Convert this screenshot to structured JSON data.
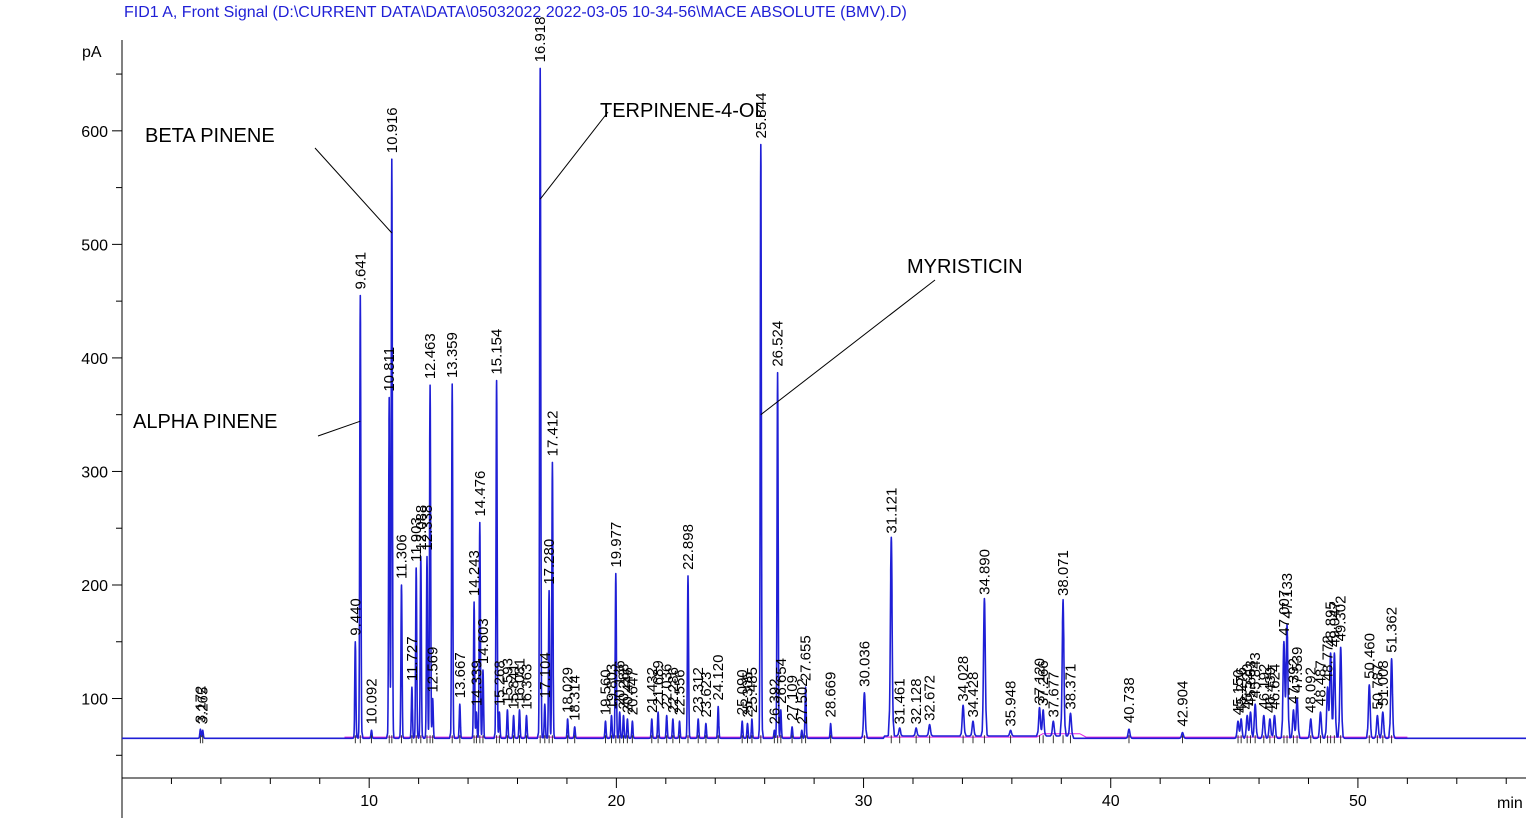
{
  "header": {
    "title": "FID1 A, Front Signal (D:\\CURRENT DATA\\DATA\\05032022 2022-03-05 10-34-56\\MACE ABSOLUTE (BMV).D)"
  },
  "colors": {
    "signal": "#1f1fd6",
    "baseline": "#e020e0",
    "axis": "#000000",
    "title": "#1f1fd6"
  },
  "chart_data": {
    "type": "line",
    "title": "FID1 A, Front Signal (D:\\CURRENT DATA\\DATA\\05032022 2022-03-05 10-34-56\\MACE ABSOLUTE (BMV).D)",
    "xlabel": "min",
    "ylabel": "pA",
    "xlim": [
      0,
      56.8
    ],
    "ylim": [
      30,
      680
    ],
    "x_ticks": [
      10,
      20,
      30,
      40,
      50
    ],
    "y_ticks": [
      100,
      200,
      300,
      400,
      500,
      600
    ],
    "baseline": 65,
    "grid": false,
    "peaks": [
      {
        "rt": 3.172,
        "h": 73,
        "label": "3.172"
      },
      {
        "rt": 3.265,
        "h": 72,
        "label": "3.265"
      },
      {
        "rt": 9.44,
        "h": 150,
        "label": "9.440"
      },
      {
        "rt": 9.641,
        "h": 455,
        "label": "9.641"
      },
      {
        "rt": 10.092,
        "h": 72,
        "label": "10.092"
      },
      {
        "rt": 10.811,
        "h": 365,
        "label": "10.811"
      },
      {
        "rt": 10.916,
        "h": 575,
        "label": "10.916"
      },
      {
        "rt": 11.306,
        "h": 200,
        "label": "11.306"
      },
      {
        "rt": 11.727,
        "h": 110,
        "label": "11.727"
      },
      {
        "rt": 11.903,
        "h": 215,
        "label": "11.903"
      },
      {
        "rt": 12.088,
        "h": 225,
        "label": "12.088"
      },
      {
        "rt": 12.338,
        "h": 225,
        "label": "12.338"
      },
      {
        "rt": 12.463,
        "h": 376,
        "label": "12.463"
      },
      {
        "rt": 12.569,
        "h": 100,
        "label": "12.569"
      },
      {
        "rt": 13.359,
        "h": 377,
        "label": "13.359"
      },
      {
        "rt": 13.667,
        "h": 95,
        "label": "13.667"
      },
      {
        "rt": 14.243,
        "h": 185,
        "label": "14.243"
      },
      {
        "rt": 14.339,
        "h": 88,
        "label": "14.339"
      },
      {
        "rt": 14.476,
        "h": 255,
        "label": "14.476"
      },
      {
        "rt": 14.603,
        "h": 125,
        "label": "14.603"
      },
      {
        "rt": 15.154,
        "h": 380,
        "label": "15.154"
      },
      {
        "rt": 15.268,
        "h": 88,
        "label": "15.268"
      },
      {
        "rt": 15.593,
        "h": 90,
        "label": "15.593"
      },
      {
        "rt": 15.841,
        "h": 85,
        "label": "15.841"
      },
      {
        "rt": 16.081,
        "h": 90,
        "label": "16.081"
      },
      {
        "rt": 16.363,
        "h": 85,
        "label": "16.363"
      },
      {
        "rt": 16.918,
        "h": 655,
        "label": "16.918"
      },
      {
        "rt": 17.104,
        "h": 95,
        "label": "17.104"
      },
      {
        "rt": 17.28,
        "h": 195,
        "label": "17.280"
      },
      {
        "rt": 17.412,
        "h": 308,
        "label": "17.412"
      },
      {
        "rt": 18.029,
        "h": 82,
        "label": "18.029"
      },
      {
        "rt": 18.314,
        "h": 75,
        "label": "18.314"
      },
      {
        "rt": 19.56,
        "h": 80,
        "label": "19.560"
      },
      {
        "rt": 19.803,
        "h": 85,
        "label": "19.803"
      },
      {
        "rt": 19.977,
        "h": 210,
        "label": "19.977"
      },
      {
        "rt": 20.136,
        "h": 88,
        "label": "20.136"
      },
      {
        "rt": 20.288,
        "h": 85,
        "label": "20.288"
      },
      {
        "rt": 20.446,
        "h": 82,
        "label": "20.446"
      },
      {
        "rt": 20.647,
        "h": 80,
        "label": "20.647"
      },
      {
        "rt": 21.432,
        "h": 82,
        "label": "21.432"
      },
      {
        "rt": 21.689,
        "h": 88,
        "label": "21.689"
      },
      {
        "rt": 22.036,
        "h": 85,
        "label": "22.036"
      },
      {
        "rt": 22.286,
        "h": 82,
        "label": "22.286"
      },
      {
        "rt": 22.556,
        "h": 80,
        "label": "22.556"
      },
      {
        "rt": 22.898,
        "h": 208,
        "label": "22.898"
      },
      {
        "rt": 23.312,
        "h": 82,
        "label": "23.312"
      },
      {
        "rt": 23.623,
        "h": 78,
        "label": "23.623"
      },
      {
        "rt": 24.12,
        "h": 93,
        "label": "24.120"
      },
      {
        "rt": 25.09,
        "h": 80,
        "label": "25.090"
      },
      {
        "rt": 25.305,
        "h": 78,
        "label": "25.305"
      },
      {
        "rt": 25.485,
        "h": 82,
        "label": "25.485"
      },
      {
        "rt": 25.844,
        "h": 588,
        "label": "25.844"
      },
      {
        "rt": 26.392,
        "h": 72,
        "label": "26.392"
      },
      {
        "rt": 26.524,
        "h": 387,
        "label": "26.524"
      },
      {
        "rt": 26.654,
        "h": 90,
        "label": "26.654"
      },
      {
        "rt": 27.109,
        "h": 75,
        "label": "27.109"
      },
      {
        "rt": 27.502,
        "h": 72,
        "label": "27.502"
      },
      {
        "rt": 27.655,
        "h": 110,
        "label": "27.655"
      },
      {
        "rt": 28.669,
        "h": 78,
        "label": "28.669"
      },
      {
        "rt": 30.036,
        "h": 105,
        "label": "30.036"
      },
      {
        "rt": 31.121,
        "h": 240,
        "label": "31.121"
      },
      {
        "rt": 31.461,
        "h": 72,
        "label": "31.461"
      },
      {
        "rt": 32.128,
        "h": 72,
        "label": "32.128"
      },
      {
        "rt": 32.672,
        "h": 75,
        "label": "32.672"
      },
      {
        "rt": 34.028,
        "h": 92,
        "label": "34.028"
      },
      {
        "rt": 34.428,
        "h": 78,
        "label": "34.428"
      },
      {
        "rt": 34.89,
        "h": 186,
        "label": "34.890"
      },
      {
        "rt": 35.948,
        "h": 70,
        "label": "35.948"
      },
      {
        "rt": 37.12,
        "h": 90,
        "label": "37.120"
      },
      {
        "rt": 37.266,
        "h": 88,
        "label": "37.266"
      },
      {
        "rt": 37.677,
        "h": 78,
        "label": "37.677"
      },
      {
        "rt": 38.071,
        "h": 185,
        "label": "38.071"
      },
      {
        "rt": 38.371,
        "h": 85,
        "label": "38.371"
      },
      {
        "rt": 40.738,
        "h": 73,
        "label": "40.738"
      },
      {
        "rt": 42.904,
        "h": 70,
        "label": "42.904"
      },
      {
        "rt": 45.15,
        "h": 80,
        "label": "45.150"
      },
      {
        "rt": 45.276,
        "h": 82,
        "label": "45.276"
      },
      {
        "rt": 45.52,
        "h": 85,
        "label": "45.520"
      },
      {
        "rt": 45.653,
        "h": 88,
        "label": "45.653"
      },
      {
        "rt": 45.843,
        "h": 95,
        "label": "45.843"
      },
      {
        "rt": 46.192,
        "h": 85,
        "label": "46.192"
      },
      {
        "rt": 46.439,
        "h": 82,
        "label": "46.439"
      },
      {
        "rt": 46.624,
        "h": 85,
        "label": "46.624"
      },
      {
        "rt": 47.007,
        "h": 150,
        "label": "47.007"
      },
      {
        "rt": 47.133,
        "h": 165,
        "label": "47.133"
      },
      {
        "rt": 47.392,
        "h": 90,
        "label": "47.392"
      },
      {
        "rt": 47.539,
        "h": 100,
        "label": "47.539"
      },
      {
        "rt": 48.092,
        "h": 82,
        "label": "48.092"
      },
      {
        "rt": 48.487,
        "h": 88,
        "label": "48.487"
      },
      {
        "rt": 48.772,
        "h": 110,
        "label": "48.772"
      },
      {
        "rt": 48.895,
        "h": 140,
        "label": "48.895"
      },
      {
        "rt": 49.047,
        "h": 140,
        "label": "49.047"
      },
      {
        "rt": 49.302,
        "h": 145,
        "label": "49.302"
      },
      {
        "rt": 50.46,
        "h": 112,
        "label": "50.460"
      },
      {
        "rt": 50.787,
        "h": 85,
        "label": "50.787"
      },
      {
        "rt": 51.008,
        "h": 88,
        "label": "51.008"
      },
      {
        "rt": 51.362,
        "h": 135,
        "label": "51.362"
      }
    ],
    "annotations": [
      {
        "text": "BETA PINENE",
        "rt": 10.916,
        "y": 600
      },
      {
        "text": "ALPHA PINENE",
        "rt": 9.641,
        "y": 405
      },
      {
        "text": "TERPINENE-4-OL",
        "rt": 16.918,
        "y": 635
      },
      {
        "text": "MYRISTICIN",
        "rt": 25.844,
        "y": 517
      }
    ]
  }
}
